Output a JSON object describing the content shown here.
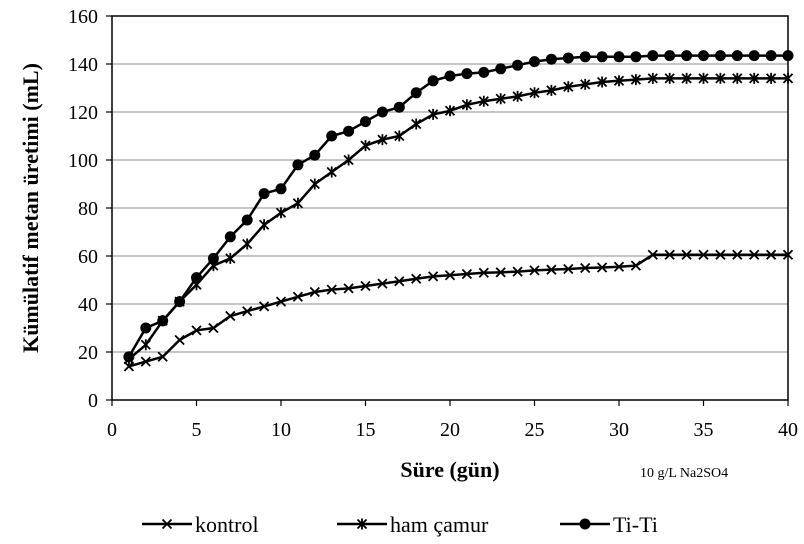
{
  "chart_data": {
    "type": "line",
    "title": "",
    "xlabel": "Süre (gün)",
    "ylabel": "Kümülatif metan üretimi (mL)",
    "annotation": "10 g/L Na2SO4",
    "xlim": [
      0,
      40
    ],
    "ylim": [
      0,
      160
    ],
    "x_ticks": [
      "0",
      "5",
      "10",
      "15",
      "20",
      "25",
      "30",
      "35",
      "40"
    ],
    "y_ticks": [
      "0",
      "20",
      "40",
      "60",
      "80",
      "100",
      "120",
      "140",
      "160"
    ],
    "grid": "horizontal",
    "legend_position": "bottom",
    "x": [
      1,
      2,
      3,
      4,
      5,
      6,
      7,
      8,
      9,
      10,
      11,
      12,
      13,
      14,
      15,
      16,
      17,
      18,
      19,
      20,
      21,
      22,
      23,
      24,
      25,
      26,
      27,
      28,
      29,
      30,
      31,
      32,
      33,
      34,
      35,
      36,
      37,
      38,
      39,
      40
    ],
    "series": [
      {
        "name": "kontrol",
        "marker": "x",
        "color": "#000000",
        "values": [
          14,
          16,
          18,
          25,
          29,
          30,
          35,
          37,
          39,
          41,
          43,
          45,
          46,
          46.5,
          47.5,
          48.5,
          49.5,
          50.5,
          51.5,
          52,
          52.5,
          53,
          53.2,
          53.5,
          54,
          54.3,
          54.6,
          55,
          55.2,
          55.5,
          56,
          60.5,
          60.5,
          60.5,
          60.5,
          60.5,
          60.5,
          60.5,
          60.5,
          60.5
        ]
      },
      {
        "name": "ham çamur",
        "marker": "asterisk",
        "color": "#000000",
        "values": [
          17,
          23,
          33,
          41,
          48,
          56,
          59,
          65,
          73,
          78,
          82,
          90,
          95,
          100,
          106,
          108.5,
          110,
          115,
          119,
          120.5,
          123,
          124.5,
          125.5,
          126.5,
          128,
          129,
          130.5,
          131.5,
          132.5,
          133,
          133.5,
          134,
          134,
          134,
          134,
          134,
          134,
          134,
          134,
          134
        ]
      },
      {
        "name": "Ti-Ti",
        "marker": "circle",
        "color": "#000000",
        "values": [
          18,
          30,
          33,
          41,
          51,
          59,
          68,
          75,
          86,
          88,
          98,
          102,
          110,
          112,
          116,
          120,
          122,
          128,
          133,
          135,
          136,
          136.5,
          138,
          139.5,
          141,
          142,
          142.5,
          143,
          143,
          143,
          143,
          143.5,
          143.5,
          143.5,
          143.5,
          143.5,
          143.5,
          143.5,
          143.5,
          143.5
        ]
      }
    ]
  }
}
